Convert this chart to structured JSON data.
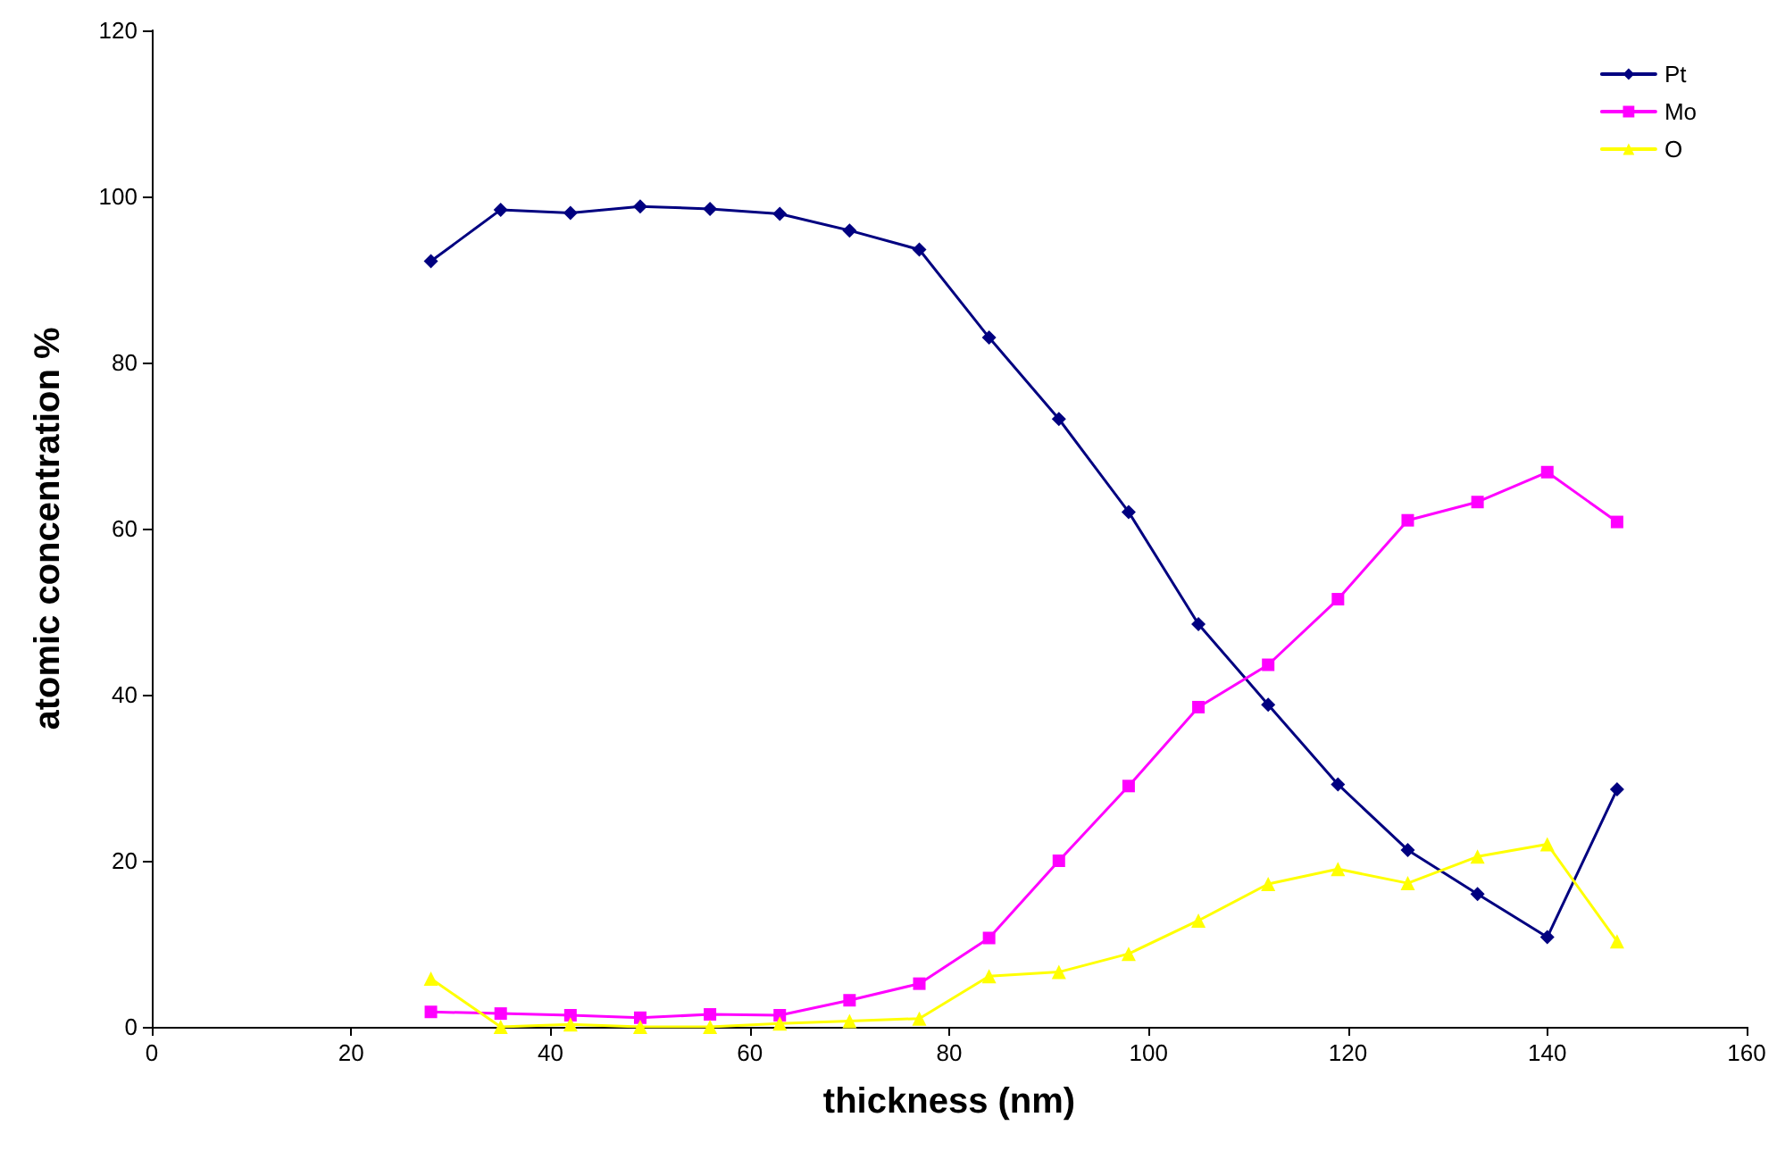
{
  "chart_data": {
    "type": "line",
    "xlabel": "thickness (nm)",
    "ylabel": "atomic concentration %",
    "x": [
      28,
      35,
      42,
      49,
      56,
      63,
      70,
      77,
      84,
      91,
      98,
      105,
      112,
      119,
      126,
      133,
      140,
      147
    ],
    "series": [
      {
        "name": "Pt",
        "color": "#000080",
        "marker": "diamond",
        "values": [
          92.2,
          98.4,
          98,
          98.8,
          98.5,
          97.9,
          95.9,
          93.6,
          83,
          73.2,
          62,
          48.5,
          38.8,
          29.2,
          21.3,
          16,
          10.8,
          28.6
        ]
      },
      {
        "name": "Mo",
        "color": "#ff00ff",
        "marker": "square",
        "values": [
          1.8,
          1.6,
          1.4,
          1.1,
          1.5,
          1.4,
          3.2,
          5.2,
          10.7,
          20,
          29,
          38.5,
          43.6,
          51.5,
          61,
          63.2,
          66.8,
          60.8
        ]
      },
      {
        "name": "O",
        "color": "#ffff00",
        "marker": "triangle",
        "values": [
          5.8,
          0,
          0.3,
          0,
          0,
          0.4,
          0.7,
          1,
          6.1,
          6.6,
          8.8,
          12.8,
          17.2,
          19,
          17.3,
          20.5,
          22,
          10.3
        ]
      }
    ],
    "xlim": [
      0,
      160
    ],
    "xticks": [
      0,
      20,
      40,
      60,
      80,
      100,
      120,
      140,
      160
    ],
    "ylim": [
      0,
      120
    ],
    "yticks": [
      0,
      20,
      40,
      60,
      80,
      100,
      120
    ],
    "grid": false,
    "legend": "top right"
  }
}
